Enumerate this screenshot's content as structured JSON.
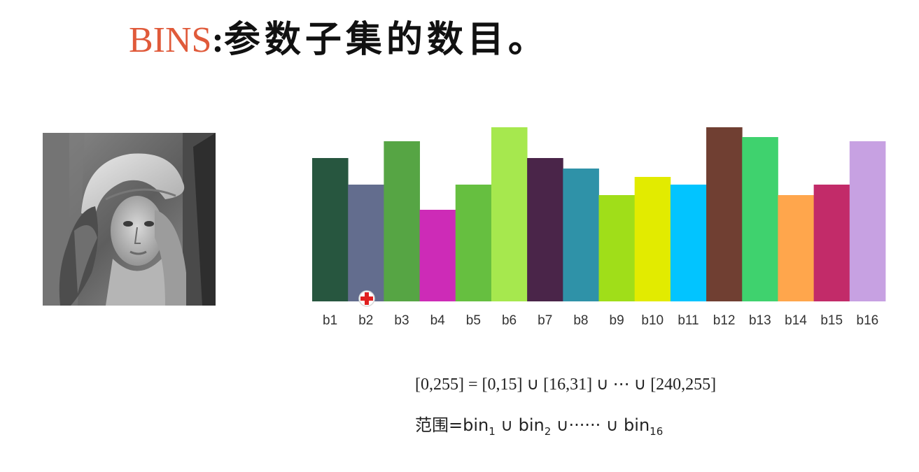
{
  "title": {
    "accent": "BINS",
    "colon": ":",
    "text": "参数子集的数目。"
  },
  "image": {
    "icon": "grayscale-portrait-photo"
  },
  "chart_data": {
    "type": "bar",
    "categories": [
      "b1",
      "b2",
      "b3",
      "b4",
      "b5",
      "b6",
      "b7",
      "b8",
      "b9",
      "b10",
      "b11",
      "b12",
      "b13",
      "b14",
      "b15",
      "b16"
    ],
    "values": [
      205,
      167,
      229,
      131,
      167,
      249,
      205,
      190,
      152,
      178,
      167,
      249,
      235,
      152,
      167,
      229
    ],
    "colors": [
      "#27563f",
      "#636d8e",
      "#56a544",
      "#cd2bb7",
      "#66bf40",
      "#a6e84e",
      "#4a2549",
      "#2f92a8",
      "#a0de19",
      "#e2eb00",
      "#02c4ff",
      "#703f32",
      "#3fd26e",
      "#ffa64c",
      "#c22b69",
      "#c7a1e2"
    ],
    "ylim": [
      0,
      250
    ],
    "grid": false,
    "legend": "none",
    "xlabel": "",
    "ylabel": ""
  },
  "cursor": {
    "icon": "red-cross-cursor-icon"
  },
  "formulas": {
    "line1": "[0,255] = [0,15] ∪ [16,31] ∪ ⋯ ∪ [240,255]",
    "line2": {
      "prefix": "范围=bin",
      "sub1": "1",
      "union1": " ∪ bin",
      "sub2": "2",
      "union2": " ∪······ ∪ bin",
      "sub3": "16"
    }
  }
}
